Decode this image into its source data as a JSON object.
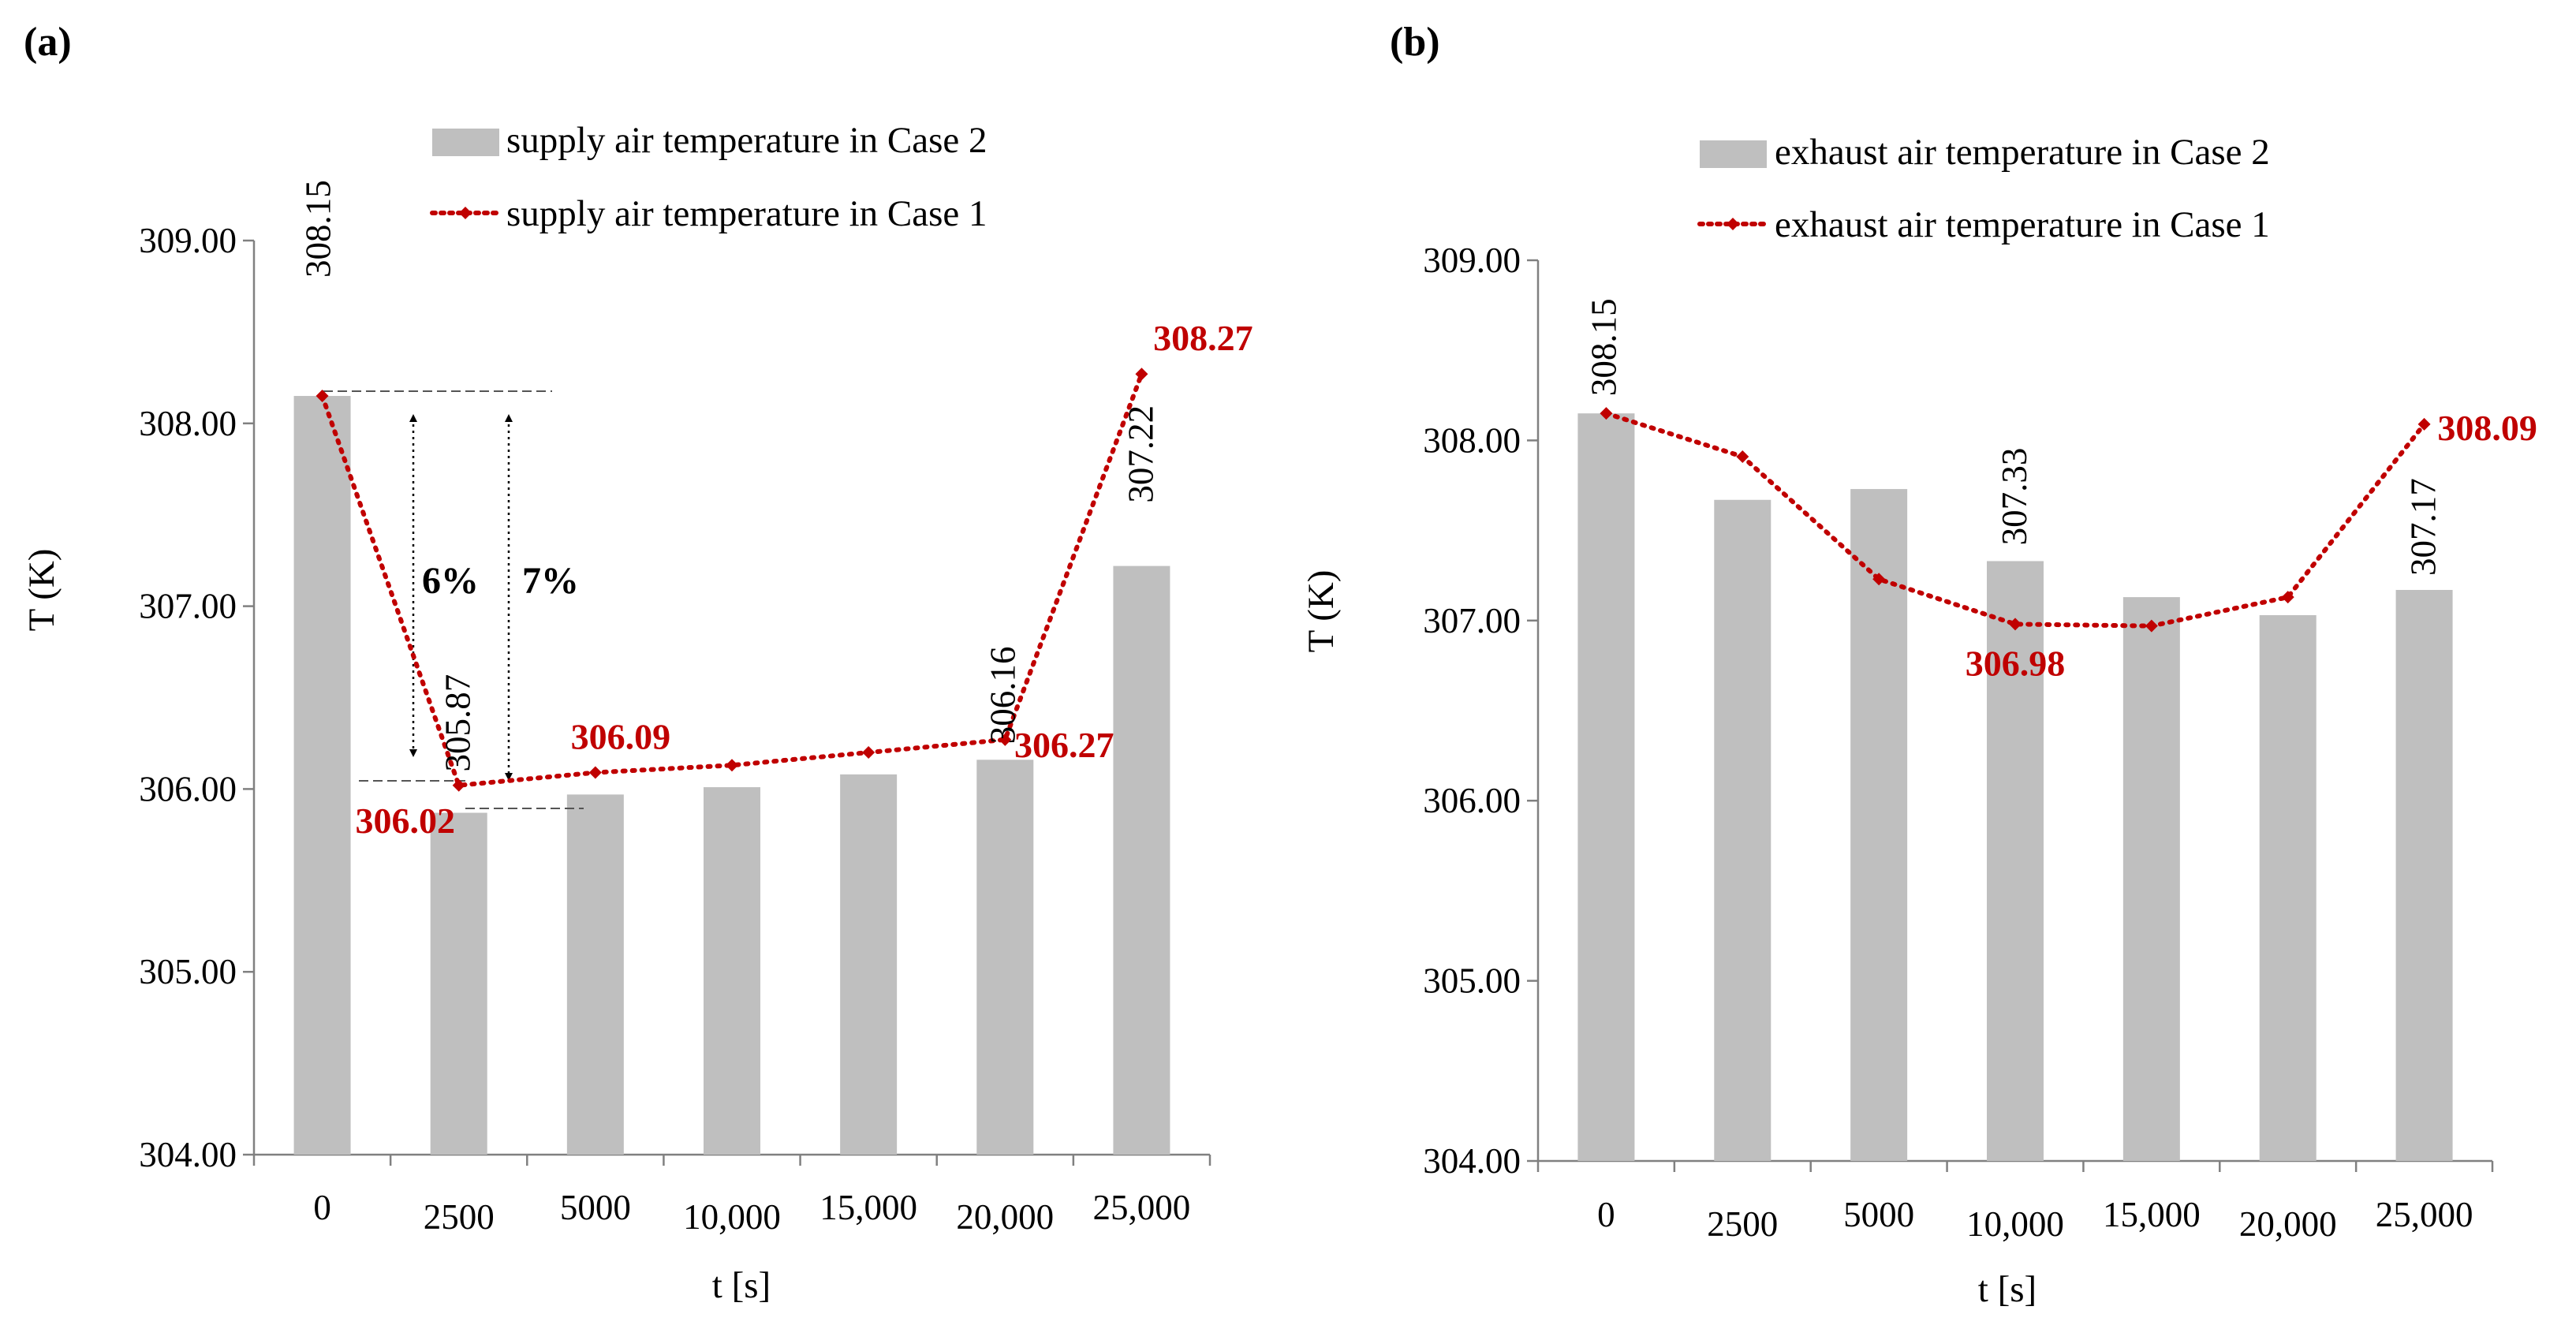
{
  "chart_data": [
    {
      "panel": "(a)",
      "type": "bar+line",
      "categories": [
        "0",
        "2500",
        "5000",
        "10,000",
        "15,000",
        "20,000",
        "25,000"
      ],
      "xlabel": "t [s]",
      "ylabel": "T (K)",
      "ylim": [
        304.0,
        309.0
      ],
      "yticks": [
        "304.00",
        "305.00",
        "306.00",
        "307.00",
        "308.00",
        "309.00"
      ],
      "colors": {
        "bar": "#bfbfbf",
        "line": "#c00000"
      },
      "series": [
        {
          "name": "supply air temperature in Case 2",
          "kind": "bar",
          "values": [
            308.15,
            305.87,
            305.97,
            306.01,
            306.08,
            306.16,
            307.22
          ],
          "labels": [
            "308.15",
            "305.87",
            "",
            "",
            "",
            "306.16",
            "307.22"
          ]
        },
        {
          "name": "supply air temperature in Case 1",
          "kind": "line",
          "values": [
            308.15,
            306.02,
            306.09,
            306.13,
            306.2,
            306.27,
            308.27
          ],
          "labels": [
            "",
            "306.02",
            "306.09",
            "",
            "",
            "306.27",
            "308.27"
          ]
        }
      ],
      "annotations": [
        "6%",
        "7%"
      ]
    },
    {
      "panel": "(b)",
      "type": "bar+line",
      "categories": [
        "0",
        "2500",
        "5000",
        "10,000",
        "15,000",
        "20,000",
        "25,000"
      ],
      "xlabel": "t [s]",
      "ylabel": "T (K)",
      "ylim": [
        304.0,
        309.0
      ],
      "yticks": [
        "304.00",
        "305.00",
        "306.00",
        "307.00",
        "308.00",
        "309.00"
      ],
      "colors": {
        "bar": "#bfbfbf",
        "line": "#c00000"
      },
      "series": [
        {
          "name": "exhaust air temperature in Case 2",
          "kind": "bar",
          "values": [
            308.15,
            307.67,
            307.73,
            307.33,
            307.13,
            307.03,
            307.17
          ],
          "labels": [
            "308.15",
            "",
            "",
            "307.33",
            "",
            "",
            "307.17"
          ]
        },
        {
          "name": "exhaust air temperature in Case 1",
          "kind": "line",
          "values": [
            308.15,
            307.91,
            307.23,
            306.98,
            306.97,
            307.13,
            308.09
          ],
          "labels": [
            "",
            "",
            "",
            "306.98",
            "",
            "",
            "308.09"
          ]
        }
      ],
      "annotations": []
    }
  ]
}
